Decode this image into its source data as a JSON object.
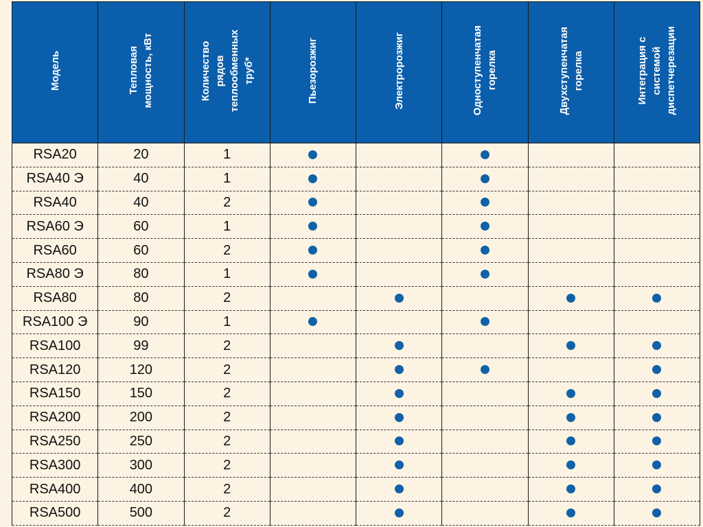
{
  "headers": [
    "Модель",
    "Тепловая\nмощность, кВт",
    "Количество\nрядов\nтеплообменных\nтруб*",
    "Пьезорозжиг",
    "Электророзжиг",
    "Одноступенчатая\nгорелка",
    "Двухступенчатая\nгорелка",
    "Интеграция с\nсистемой\nдиспетчерезации"
  ],
  "dot_color": "#1261a8",
  "header_color": "#0b5eab",
  "rows": [
    {
      "model": "RSA20",
      "power": "20",
      "rows": "1",
      "flags": [
        1,
        0,
        1,
        0,
        0
      ]
    },
    {
      "model": "RSA40 Э",
      "power": "40",
      "rows": "1",
      "flags": [
        1,
        0,
        1,
        0,
        0
      ]
    },
    {
      "model": "RSA40",
      "power": "40",
      "rows": "2",
      "flags": [
        1,
        0,
        1,
        0,
        0
      ]
    },
    {
      "model": "RSA60 Э",
      "power": "60",
      "rows": "1",
      "flags": [
        1,
        0,
        1,
        0,
        0
      ]
    },
    {
      "model": "RSA60",
      "power": "60",
      "rows": "2",
      "flags": [
        1,
        0,
        1,
        0,
        0
      ]
    },
    {
      "model": "RSA80 Э",
      "power": "80",
      "rows": "1",
      "flags": [
        1,
        0,
        1,
        0,
        0
      ]
    },
    {
      "model": "RSA80",
      "power": "80",
      "rows": "2",
      "flags": [
        0,
        1,
        0,
        1,
        1
      ]
    },
    {
      "model": "RSA100 Э",
      "power": "90",
      "rows": "1",
      "flags": [
        1,
        0,
        1,
        0,
        0
      ]
    },
    {
      "model": "RSA100",
      "power": "99",
      "rows": "2",
      "flags": [
        0,
        1,
        0,
        1,
        1
      ]
    },
    {
      "model": "RSA120",
      "power": "120",
      "rows": "2",
      "flags": [
        0,
        1,
        1,
        0,
        1
      ]
    },
    {
      "model": "RSA150",
      "power": "150",
      "rows": "2",
      "flags": [
        0,
        1,
        0,
        1,
        1
      ]
    },
    {
      "model": "RSA200",
      "power": "200",
      "rows": "2",
      "flags": [
        0,
        1,
        0,
        1,
        1
      ]
    },
    {
      "model": "RSA250",
      "power": "250",
      "rows": "2",
      "flags": [
        0,
        1,
        0,
        1,
        1
      ]
    },
    {
      "model": "RSA300",
      "power": "300",
      "rows": "2",
      "flags": [
        0,
        1,
        0,
        1,
        1
      ]
    },
    {
      "model": "RSA400",
      "power": "400",
      "rows": "2",
      "flags": [
        0,
        1,
        0,
        1,
        1
      ]
    },
    {
      "model": "RSA500",
      "power": "500",
      "rows": "2",
      "flags": [
        0,
        1,
        0,
        1,
        1
      ]
    }
  ]
}
